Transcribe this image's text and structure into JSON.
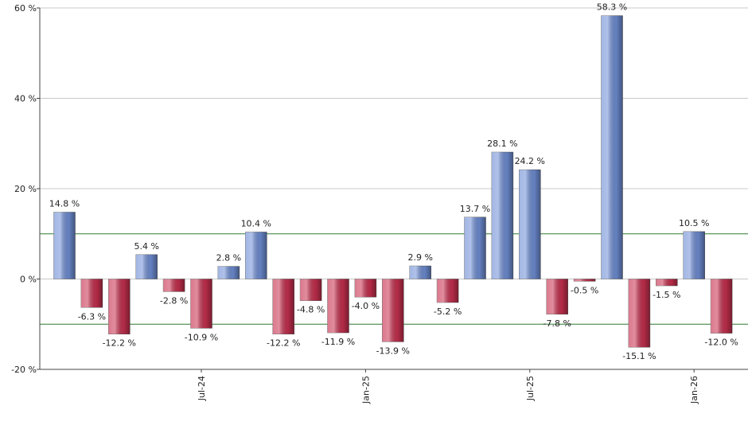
{
  "chart_data": {
    "type": "bar",
    "categories": [
      null,
      null,
      null,
      null,
      null,
      "Jul-24",
      null,
      null,
      null,
      null,
      null,
      "Jan-25",
      null,
      null,
      null,
      null,
      null,
      "Jul-25",
      null,
      null,
      null,
      null,
      null,
      "Jan-26",
      null
    ],
    "values": [
      14.8,
      -6.3,
      -12.2,
      5.4,
      -2.8,
      -10.9,
      2.8,
      10.4,
      -12.2,
      -4.8,
      -11.9,
      -4.0,
      -13.9,
      2.9,
      -5.2,
      13.7,
      28.1,
      24.2,
      -7.8,
      -0.5,
      58.3,
      -15.1,
      -1.5,
      10.5,
      -12.0
    ],
    "value_labels": [
      "14.8 %",
      "-6.3 %",
      "-12.2 %",
      "5.4 %",
      "-2.8 %",
      "-10.9 %",
      "2.8 %",
      "10.4 %",
      "-12.2 %",
      "-4.8 %",
      "-11.9 %",
      "-4.0 %",
      "-13.9 %",
      "2.9 %",
      "-5.2 %",
      "13.7 %",
      "28.1 %",
      "24.2 %",
      "-7.8 %",
      "-0.5 %",
      "58.3 %",
      "-15.1 %",
      "-1.5 %",
      "10.5 %",
      "-12.0 %"
    ],
    "positive_color": "#6f8fd6",
    "negative_color": "#c8304f",
    "ylim": [
      -20,
      60
    ],
    "yticks": [
      {
        "value": -20,
        "label": "-20 %"
      },
      {
        "value": 0,
        "label": "0 %"
      },
      {
        "value": 20,
        "label": "20 %"
      },
      {
        "value": 40,
        "label": "40 %"
      },
      {
        "value": 60,
        "label": "60 %"
      }
    ],
    "grid": true,
    "reference_lines": [
      10,
      -10
    ],
    "reference_color": "#2e7d32"
  }
}
